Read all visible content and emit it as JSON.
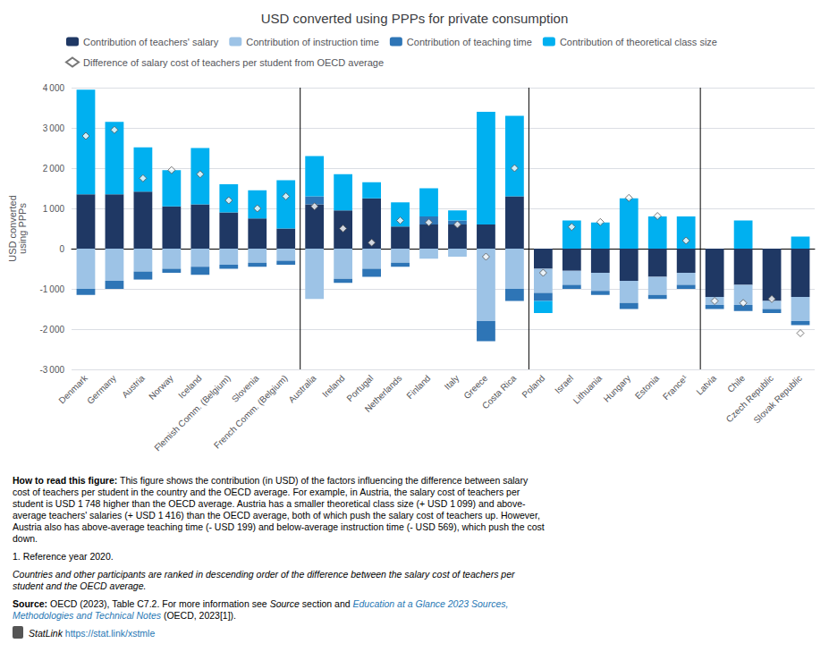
{
  "chart_data": {
    "type": "bar",
    "title": "USD converted using PPPs for private consumption",
    "ylabel": "USD converted\nusing PPPs",
    "categories": [
      "Denmark",
      "Germany",
      "Austria",
      "Norway",
      "Iceland",
      "Flemish Comm. (Belgium)",
      "Slovenia",
      "French Comm. (Belgium)",
      "Australia",
      "Ireland",
      "Portugal",
      "Netherlands",
      "Finland",
      "Italy",
      "Greece",
      "Costa Rica",
      "Poland",
      "Israel",
      "Lithuania",
      "Hungary",
      "Estonia",
      "France¹",
      "Latvia",
      "Chile",
      "Czech Republic",
      "Slovak Republic"
    ],
    "series": [
      {
        "name": "Contribution of teachers' salary",
        "color": "#1f3864",
        "values": [
          1350,
          1350,
          1416,
          1050,
          1100,
          900,
          750,
          500,
          1100,
          950,
          1250,
          550,
          600,
          600,
          600,
          1300,
          -500,
          -550,
          -600,
          -800,
          -700,
          -600,
          -1200,
          -900,
          -1300,
          -1200
        ]
      },
      {
        "name": "Contribution of instruction time",
        "color": "#9dc3e6",
        "values": [
          -1000,
          -800,
          -569,
          -500,
          -450,
          -400,
          -350,
          -300,
          -1250,
          -750,
          -500,
          -350,
          -250,
          -200,
          -1800,
          -1000,
          -600,
          -350,
          -450,
          -550,
          -450,
          -300,
          -200,
          -500,
          -200,
          -600
        ]
      },
      {
        "name": "Contribution of teaching time",
        "color": "#2e75b6",
        "values": [
          -150,
          -200,
          -199,
          -100,
          -200,
          -100,
          -100,
          -100,
          200,
          -100,
          -200,
          -100,
          200,
          100,
          -500,
          -300,
          -200,
          -100,
          -100,
          -150,
          -100,
          -100,
          -100,
          -150,
          -100,
          -100
        ]
      },
      {
        "name": "Contribution of theoretical class size",
        "color": "#00b0f0",
        "values": [
          2600,
          1800,
          1099,
          900,
          1400,
          700,
          700,
          1200,
          1000,
          900,
          400,
          600,
          700,
          250,
          2800,
          2000,
          -300,
          700,
          650,
          1250,
          800,
          800,
          0,
          700,
          0,
          300
        ]
      },
      {
        "name": "Difference of salary cost of teachers per student from OECD average",
        "type": "scatter",
        "marker": "diamond",
        "color": "#ffffff",
        "values": [
          2800,
          2950,
          1748,
          1950,
          1850,
          1200,
          1000,
          1300,
          1050,
          500,
          150,
          700,
          650,
          600,
          -200,
          2000,
          -600,
          540,
          660,
          1260,
          810,
          200,
          -1300,
          -1350,
          -1250,
          -2100
        ]
      }
    ],
    "stacked": true,
    "ylim": [
      -3000,
      4000
    ],
    "yticks": [
      {
        "value": -3000,
        "label": "-3 000"
      },
      {
        "value": -2000,
        "label": "-2 000"
      },
      {
        "value": -1000,
        "label": "-1 000"
      },
      0,
      {
        "value": 1000,
        "label": "1 000"
      },
      {
        "value": 2000,
        "label": "2 000"
      },
      {
        "value": 3000,
        "label": "3 000"
      },
      {
        "value": 4000,
        "label": "4 000"
      }
    ],
    "grid": true,
    "legend": "upper left",
    "separators_after": [
      "French Comm. (Belgium)",
      "Costa Rica",
      "France¹"
    ],
    "annotations": [
      "How to read this figure:",
      " This figure shows the contribution (in USD) of the factors influencing the difference between salary\ncost of teachers per student in the country and the OECD average. For example, in Austria, the salary cost of teachers per\nstudent is USD 1 748 higher than the OECD average. Austria has a smaller theoretical class size (+ USD 1 099) and above-\naverage teachers' salaries (+ USD 1 416) than the OECD average, both of which push the salary cost of teachers up. However,\nAustria also has above-average teaching time (- USD 199) and below-average instruction time (- USD 569), which push the cost\ndown.",
      "1. Reference year 2020.",
      "Countries and other participants are ranked in descending order of the difference between the salary cost of teachers per\nstudent and the OECD average.",
      "Source:",
      " OECD (2023), Table C7.2. For more information see ",
      "Source",
      " section and ",
      "Education at a Glance 2023 Sources,\nMethodologies and Technical Notes",
      " (OECD, 2023[1]).",
      "StatLink",
      " https://stat.link/xstmle"
    ]
  }
}
